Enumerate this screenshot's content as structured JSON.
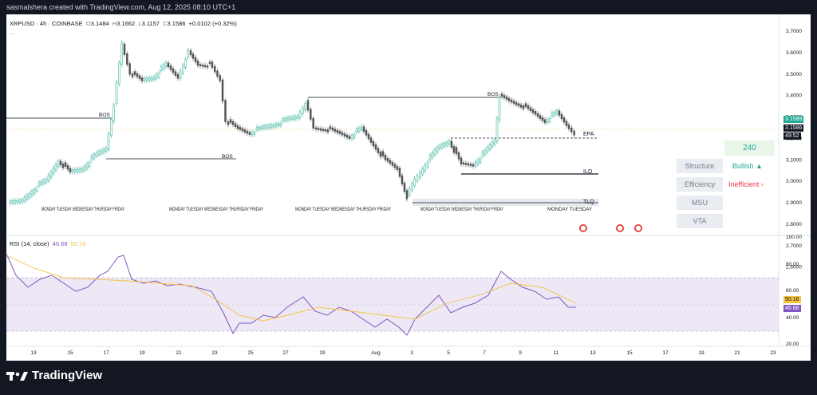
{
  "header": {
    "attribution": "sasmalshera created with TradingView.com, Aug 12, 2025 08:10 UTC+1"
  },
  "legend": {
    "symbol": "XRPUSD · 4h · COINBASE",
    "o_label": "O",
    "o_value": "3.1484",
    "h_label": "H",
    "h_value": "3.1662",
    "l_label": "L",
    "l_value": "3.1157",
    "c_label": "C",
    "c_value": "3.1586",
    "change": "+0.0102 (+0.32%)",
    "more": "..."
  },
  "rsi_legend": {
    "label": "RSI (14, close)",
    "rsi_value": "46.68",
    "ma_value": "50.16"
  },
  "price_axis": {
    "ticks": [
      "3.7000",
      "3.6000",
      "3.5000",
      "3.4000",
      "3.3000",
      "3.2000",
      "3.1000",
      "3.0000",
      "2.9000",
      "2.8000",
      "2.7000",
      "2.6000"
    ]
  },
  "rsi_axis": {
    "ticks": [
      "100.00",
      "80.00",
      "60.00",
      "40.00",
      "20.00"
    ]
  },
  "time_axis": {
    "ticks": [
      "13",
      "15",
      "17",
      "19",
      "21",
      "23",
      "25",
      "27",
      "29",
      "Aug",
      "3",
      "5",
      "7",
      "9",
      "11",
      "13",
      "15",
      "17",
      "19",
      "21",
      "23"
    ]
  },
  "price_tags": {
    "current": "3.1589",
    "close": "3.1586",
    "countdown": "49:52",
    "rsi": "46.68",
    "rsi_ma": "50.16"
  },
  "annotations": {
    "bos": "BOS",
    "epa": "EPA",
    "ilq": "ILQ",
    "tlq": "TLQ",
    "day_labels_1": "MONDAY TUESDAY WEDNESDAY THURSDAY FRIDAY",
    "day_labels_2": "MONDAY TUESDAY WEDNESDAY THURSDAY FRIDAY",
    "day_labels_3": "MONDAY TUESDAY WEDNESDAY THURSDAY FRIDAY",
    "day_labels_4": "MONDAY TUESDAY WEDNESDAY THURSDAY FRIDAY",
    "day_labels_5": "MONDAY TUESDAY"
  },
  "side_panel": {
    "timeframe": "240",
    "rows": [
      {
        "label": "Structure",
        "value": "Bullish ▲",
        "color": "#22ab94"
      },
      {
        "label": "Efficiency",
        "value": "Inefficient ▫",
        "color": "#f23645"
      },
      {
        "label": "MSU",
        "value": ""
      },
      {
        "label": "VTA",
        "value": ""
      }
    ]
  },
  "colors": {
    "up": "#22ab94",
    "down": "#555555",
    "rsi": "#7e57c2",
    "rsi_ma": "#f5c342",
    "panel_green": "#22ab94",
    "panel_red": "#f23645"
  },
  "brand": {
    "name": "TradingView"
  }
}
